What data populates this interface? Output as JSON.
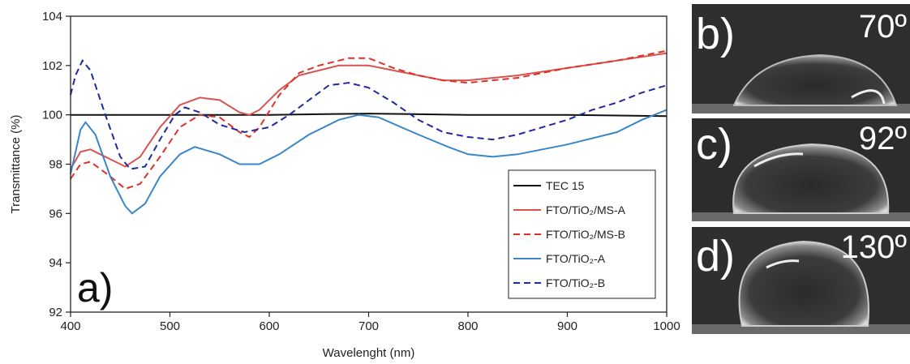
{
  "chart_data": {
    "type": "line",
    "x_label": "Wavelenght (nm)",
    "y_label": "Transmittance (%)",
    "annotation": "a)",
    "xlim": [
      400,
      1000
    ],
    "xticks": [
      400,
      500,
      600,
      700,
      800,
      900,
      1000
    ],
    "ylim": [
      92,
      104
    ],
    "yticks": [
      92,
      94,
      96,
      98,
      100,
      102,
      104
    ],
    "legend_position": "lower right",
    "series": [
      {
        "name": "TEC 15",
        "color": "#111111",
        "dash": "solid",
        "x": [
          400,
          500,
          600,
          700,
          800,
          900,
          1000
        ],
        "values": [
          100,
          100,
          100,
          100.05,
          100,
          100,
          99.95
        ]
      },
      {
        "name": "FTO/TiO₂/MS-A",
        "color": "#d9534f",
        "dash": "solid",
        "x": [
          400,
          410,
          420,
          440,
          455,
          470,
          490,
          510,
          530,
          550,
          570,
          580,
          590,
          610,
          630,
          650,
          670,
          700,
          725,
          750,
          775,
          800,
          850,
          900,
          950,
          1000
        ],
        "values": [
          97.8,
          98.5,
          98.6,
          98.2,
          97.9,
          98.3,
          99.5,
          100.4,
          100.7,
          100.6,
          100.1,
          100.0,
          100.2,
          101.0,
          101.6,
          101.8,
          102.0,
          102.0,
          101.8,
          101.6,
          101.4,
          101.4,
          101.6,
          101.9,
          102.2,
          102.5
        ]
      },
      {
        "name": "FTO/TiO₂/MS-B",
        "color": "#e0302a",
        "dash": "dashed",
        "x": [
          400,
          410,
          420,
          440,
          455,
          470,
          490,
          510,
          530,
          550,
          570,
          580,
          590,
          610,
          630,
          650,
          680,
          700,
          725,
          750,
          775,
          800,
          850,
          900,
          950,
          1000
        ],
        "values": [
          97.4,
          98.0,
          98.1,
          97.5,
          97.0,
          97.2,
          98.3,
          99.5,
          100.0,
          99.9,
          99.3,
          99.1,
          99.5,
          100.8,
          101.7,
          102.0,
          102.3,
          102.3,
          101.9,
          101.6,
          101.4,
          101.3,
          101.5,
          101.9,
          102.2,
          102.6
        ]
      },
      {
        "name": "FTO/TiO₂-A",
        "color": "#3b86c6",
        "dash": "solid",
        "x": [
          400,
          410,
          415,
          425,
          440,
          455,
          462,
          475,
          490,
          510,
          525,
          550,
          570,
          590,
          610,
          640,
          670,
          690,
          710,
          750,
          780,
          800,
          825,
          850,
          900,
          950,
          975,
          1000
        ],
        "values": [
          97.6,
          99.4,
          99.7,
          99.2,
          97.5,
          96.3,
          96.0,
          96.4,
          97.5,
          98.4,
          98.7,
          98.4,
          98.0,
          98.0,
          98.4,
          99.2,
          99.8,
          100.0,
          99.9,
          99.2,
          98.7,
          98.4,
          98.3,
          98.4,
          98.8,
          99.3,
          99.8,
          100.2
        ]
      },
      {
        "name": "FTO/TiO₂-B",
        "color": "#1f2aa0",
        "dash": "dashed",
        "x": [
          400,
          405,
          412,
          420,
          435,
          450,
          460,
          475,
          490,
          505,
          515,
          530,
          550,
          575,
          600,
          620,
          640,
          660,
          680,
          700,
          725,
          750,
          775,
          800,
          825,
          850,
          875,
          900,
          925,
          950,
          975,
          1000
        ],
        "values": [
          100.8,
          101.6,
          102.2,
          101.8,
          100.0,
          98.3,
          97.8,
          97.9,
          99.0,
          100.0,
          100.3,
          100.1,
          99.6,
          99.3,
          99.5,
          100.0,
          100.6,
          101.2,
          101.3,
          101.1,
          100.5,
          99.8,
          99.3,
          99.1,
          99.0,
          99.2,
          99.5,
          99.8,
          100.2,
          100.5,
          100.9,
          101.2
        ]
      }
    ]
  },
  "panels": [
    {
      "label": "b)",
      "angle": "70º"
    },
    {
      "label": "c)",
      "angle": "92º"
    },
    {
      "label": "d)",
      "angle": "130º"
    }
  ]
}
